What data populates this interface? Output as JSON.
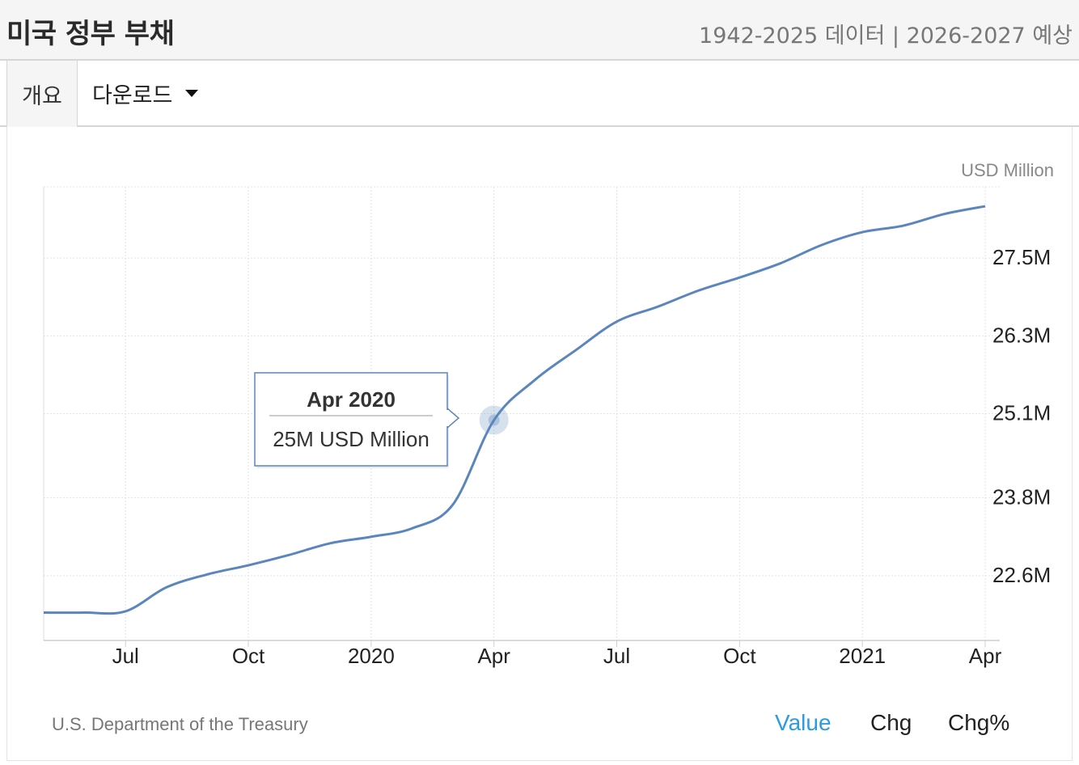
{
  "header": {
    "title": "미국 정부 부채",
    "subtitle": "1942-2025 데이터 | 2026-2027 예상"
  },
  "tabs": {
    "overview": "개요",
    "download": "다운로드"
  },
  "chart_data": {
    "type": "line",
    "unit_label": "USD Million",
    "x_ticks": [
      "Jul",
      "Oct",
      "2020",
      "Apr",
      "Jul",
      "Oct",
      "2021",
      "Apr"
    ],
    "y_ticks": [
      "22.6M",
      "23.8M",
      "25.1M",
      "26.3M",
      "27.5M"
    ],
    "y_tick_values": [
      22.6,
      23.8,
      25.1,
      26.3,
      27.5
    ],
    "ylim": [
      21.6,
      28.6
    ],
    "xlim": [
      "2019-05",
      "2021-04"
    ],
    "grid": true,
    "series": [
      {
        "color": "#5b86bd",
        "points": [
          [
            "2019-05",
            22.03
          ],
          [
            "2019-06",
            22.03
          ],
          [
            "2019-07",
            22.05
          ],
          [
            "2019-08",
            22.42
          ],
          [
            "2019-09",
            22.62
          ],
          [
            "2019-10",
            22.76
          ],
          [
            "2019-11",
            22.92
          ],
          [
            "2019-12",
            23.1
          ],
          [
            "2020-01",
            23.2
          ],
          [
            "2020-02",
            23.33
          ],
          [
            "2020-03",
            23.7
          ],
          [
            "2020-04",
            25.0
          ],
          [
            "2020-05",
            25.62
          ],
          [
            "2020-06",
            26.08
          ],
          [
            "2020-07",
            26.52
          ],
          [
            "2020-08",
            26.75
          ],
          [
            "2020-09",
            27.0
          ],
          [
            "2020-10",
            27.2
          ],
          [
            "2020-11",
            27.42
          ],
          [
            "2020-12",
            27.7
          ],
          [
            "2021-01",
            27.9
          ],
          [
            "2021-02",
            28.0
          ],
          [
            "2021-03",
            28.18
          ],
          [
            "2021-04",
            28.3
          ]
        ]
      }
    ],
    "tooltip": {
      "title": "Apr 2020",
      "value_text": "25M USD Million"
    }
  },
  "footer": {
    "source": "U.S. Department of the Treasury",
    "tabs": [
      "Value",
      "Chg",
      "Chg%"
    ],
    "active_color": "#2c9be0"
  }
}
